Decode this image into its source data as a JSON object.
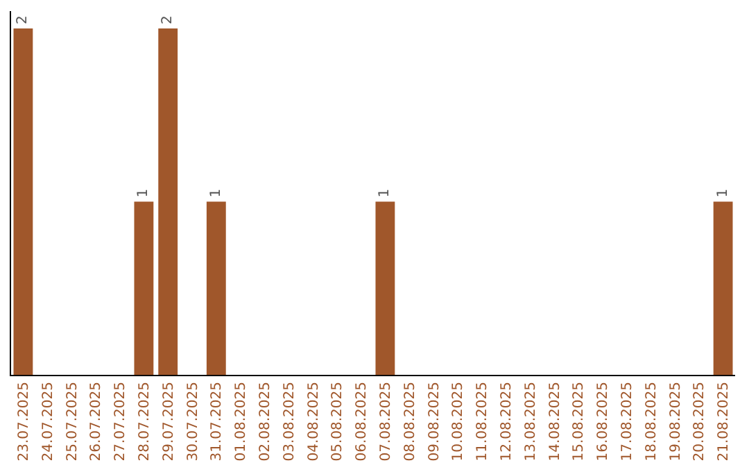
{
  "chart_data": {
    "type": "bar",
    "categories": [
      "23.07.2025",
      "24.07.2025",
      "25.07.2025",
      "26.07.2025",
      "27.07.2025",
      "28.07.2025",
      "29.07.2025",
      "30.07.2025",
      "31.07.2025",
      "01.08.2025",
      "02.08.2025",
      "03.08.2025",
      "04.08.2025",
      "05.08.2025",
      "06.08.2025",
      "07.08.2025",
      "08.08.2025",
      "09.08.2025",
      "10.08.2025",
      "11.08.2025",
      "12.08.2025",
      "13.08.2025",
      "14.08.2025",
      "15.08.2025",
      "16.08.2025",
      "17.08.2025",
      "18.08.2025",
      "19.08.2025",
      "20.08.2025",
      "21.08.2025"
    ],
    "values": [
      2,
      0,
      0,
      0,
      0,
      1,
      2,
      0,
      1,
      0,
      0,
      0,
      0,
      0,
      0,
      1,
      0,
      0,
      0,
      0,
      0,
      0,
      0,
      0,
      0,
      0,
      0,
      0,
      0,
      1
    ],
    "value_labels": [
      "2",
      null,
      null,
      null,
      null,
      "1",
      "2",
      null,
      "1",
      null,
      null,
      null,
      null,
      null,
      null,
      "1",
      null,
      null,
      null,
      null,
      null,
      null,
      null,
      null,
      null,
      null,
      null,
      null,
      null,
      "1"
    ],
    "color": "#a0572b",
    "ylim": [
      0,
      2.1
    ],
    "tick_labels": "x"
  }
}
